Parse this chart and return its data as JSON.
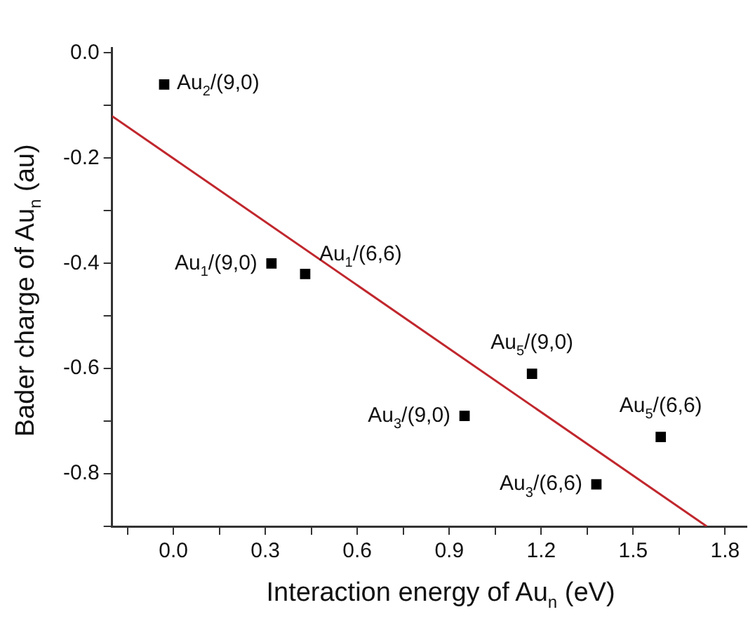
{
  "chart_data": {
    "type": "scatter",
    "xlabel": "Interaction energy of Au$_{n}$ (eV)",
    "ylabel": "Bader charge of Au$_{n}$ (au)",
    "series": [
      {
        "marker": "square",
        "color": "#000000",
        "x": [
          -0.03,
          0.32,
          0.43,
          1.17,
          0.95,
          1.59,
          1.38
        ],
        "values": [
          -0.06,
          -0.4,
          -0.42,
          -0.61,
          -0.69,
          -0.73,
          -0.82
        ]
      },
      {
        "type": "line",
        "marker": "none",
        "color": "#c0272d",
        "x": [
          -0.2,
          1.74
        ],
        "values": [
          -0.12,
          -0.9
        ]
      }
    ],
    "annotations": [
      {
        "text": "Au$_{2}$/(9,0)",
        "x": -0.03,
        "y": -0.06
      },
      {
        "text": "Au$_{1}$/(9,0)",
        "x": 0.32,
        "y": -0.4
      },
      {
        "text": "Au$_{1}$/(6,6)",
        "x": 0.43,
        "y": -0.42
      },
      {
        "text": "Au$_{5}$/(9,0)",
        "x": 1.17,
        "y": -0.61
      },
      {
        "text": "Au$_{3}$/(9,0)",
        "x": 0.95,
        "y": -0.69
      },
      {
        "text": "Au$_{5}$/(6,6)",
        "x": 1.59,
        "y": -0.73
      },
      {
        "text": "Au$_{3}$/(6,6)",
        "x": 1.38,
        "y": -0.82
      }
    ],
    "xlim": [
      -0.2,
      1.87
    ],
    "ylim": [
      -0.9,
      0.01
    ],
    "xticks": [
      {
        "value": -0.15,
        "label": null
      },
      {
        "value": 0,
        "label": "0.0"
      },
      {
        "value": 0.15,
        "label": null
      },
      {
        "value": 0.3,
        "label": "0.3"
      },
      {
        "value": 0.45,
        "label": null
      },
      {
        "value": 0.6,
        "label": "0.6"
      },
      {
        "value": 0.75,
        "label": null
      },
      {
        "value": 0.9,
        "label": "0.9"
      },
      {
        "value": 1.05,
        "label": null
      },
      {
        "value": 1.2,
        "label": "1.2"
      },
      {
        "value": 1.35,
        "label": null
      },
      {
        "value": 1.5,
        "label": "1.5"
      },
      {
        "value": 1.65,
        "label": null
      },
      {
        "value": 1.8,
        "label": "1.8"
      }
    ],
    "yticks": [
      {
        "value": -0.9,
        "label": null
      },
      {
        "value": -0.8,
        "label": "-0.8"
      },
      {
        "value": -0.7,
        "label": null
      },
      {
        "value": -0.6,
        "label": "-0.6"
      },
      {
        "value": -0.5,
        "label": null
      },
      {
        "value": -0.4,
        "label": "-0.4"
      },
      {
        "value": -0.3,
        "label": null
      },
      {
        "value": -0.2,
        "label": "-0.2"
      },
      {
        "value": -0.1,
        "label": null
      },
      {
        "value": 0,
        "label": "0.0"
      }
    ],
    "grid": false,
    "legend": false
  }
}
